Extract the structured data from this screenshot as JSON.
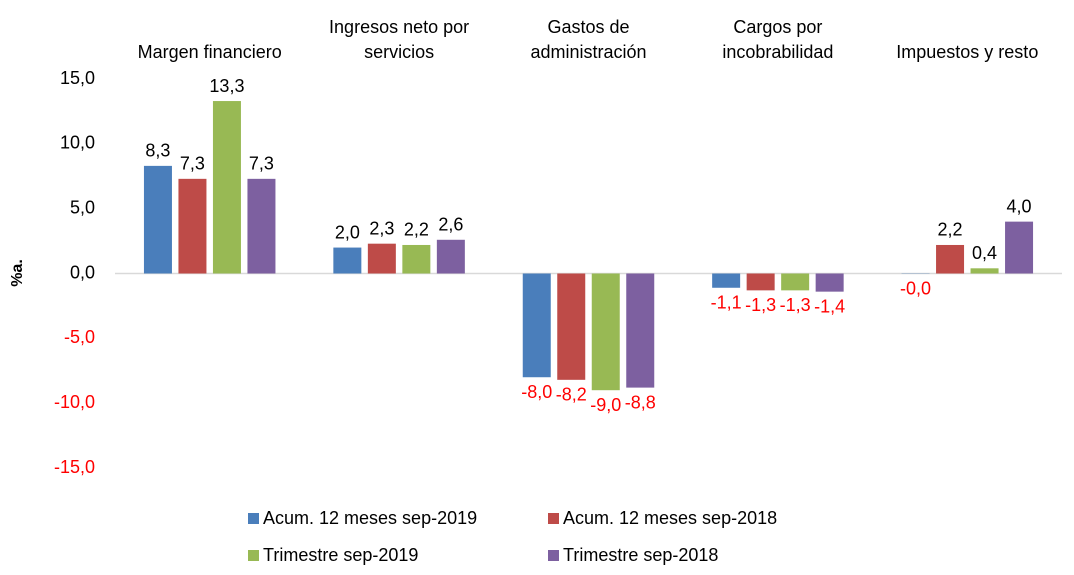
{
  "chart_data": {
    "type": "bar",
    "categories": [
      "Margen financiero",
      "Ingresos neto por servicios",
      "Gastos de administración",
      "Cargos por incobrabilidad",
      "Impuestos y resto"
    ],
    "y_label": "%a.",
    "series": [
      {
        "name": "Acum. 12 meses sep-2019",
        "color": "#4a7ebb",
        "values": [
          8.3,
          2.0,
          -8.0,
          -1.1,
          -0.02
        ],
        "value_labels": [
          "8,3",
          "2,0",
          "-8,0",
          "-1,1",
          "-0,0"
        ]
      },
      {
        "name": "Acum. 12 meses sep-2018",
        "color": "#be4b48",
        "values": [
          7.3,
          2.3,
          -8.2,
          -1.3,
          2.2
        ],
        "value_labels": [
          "7,3",
          "2,3",
          "-8,2",
          "-1,3",
          "2,2"
        ]
      },
      {
        "name": "Trimestre sep-2019",
        "color": "#98b954",
        "values": [
          13.3,
          2.2,
          -9.0,
          -1.3,
          0.4
        ],
        "value_labels": [
          "13,3",
          "2,2",
          "-9,0",
          "-1,3",
          "0,4"
        ]
      },
      {
        "name": "Trimestre sep-2018",
        "color": "#7d60a0",
        "values": [
          7.3,
          2.6,
          -8.8,
          -1.4,
          4.0
        ],
        "value_labels": [
          "7,3",
          "2,6",
          "-8,8",
          "-1,4",
          "4,0"
        ]
      }
    ],
    "ylim": [
      -15,
      15
    ],
    "yticks": [
      {
        "value": -15,
        "label": "-15,0"
      },
      {
        "value": -10,
        "label": "-10,0"
      },
      {
        "value": -5,
        "label": "-5,0"
      },
      {
        "value": 0,
        "label": "0,0"
      },
      {
        "value": 5,
        "label": "5,0"
      },
      {
        "value": 10,
        "label": "10,0"
      },
      {
        "value": 15,
        "label": "15,0"
      }
    ],
    "negative_color": "#ff0000",
    "grid": false
  }
}
